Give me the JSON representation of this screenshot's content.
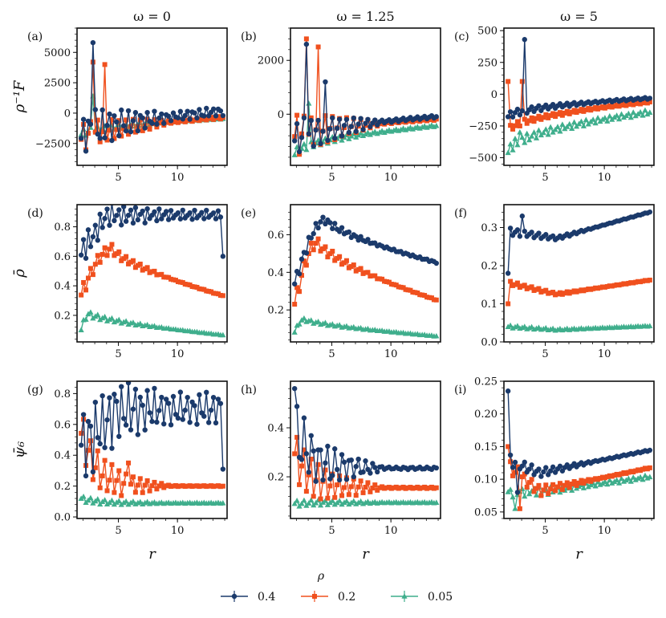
{
  "column_titles": [
    "ω = 0",
    "ω = 1.25",
    "ω = 5"
  ],
  "row_ylabels": [
    "ρ⁻¹F",
    "ρ̄",
    "ψ̄₆"
  ],
  "xlabel": "r",
  "legend": {
    "title": "ρ",
    "entries": [
      {
        "label": "0.4",
        "color": "#1b3a6b",
        "marker": "circle"
      },
      {
        "label": "0.2",
        "color": "#f0501e",
        "marker": "square"
      },
      {
        "label": "0.05",
        "color": "#3fae8c",
        "marker": "triangle"
      }
    ]
  },
  "chart_data": [
    {
      "panel": "(a)",
      "type": "line",
      "xlim": [
        1.5,
        14.2
      ],
      "ylim": [
        -4300,
        7000
      ],
      "xticks": [
        5,
        10
      ],
      "yticks": [
        -2500,
        0,
        2500,
        5000
      ],
      "ytick_labels": [
        "−2500",
        "0",
        "2500",
        "5000"
      ],
      "series": [
        {
          "name": "0.4",
          "shape": "osc",
          "start": -2000,
          "end": 150,
          "amp_start": 1800,
          "amp_end": 350,
          "period": 0.55,
          "spike": [
            2.8,
            5800
          ]
        },
        {
          "name": "0.2",
          "shape": "osc",
          "start": -2200,
          "end": -350,
          "amp_start": 1400,
          "amp_end": 120,
          "period": 0.6,
          "spike": [
            2.8,
            4200
          ],
          "spike2": [
            3.8,
            4000
          ]
        },
        {
          "name": "0.05",
          "shape": "smooth",
          "start": -1800,
          "end": -450,
          "amp_start": 300,
          "amp_end": 60,
          "period": 0.6,
          "spike": [
            2.9,
            1400
          ]
        }
      ]
    },
    {
      "panel": "(b)",
      "type": "line",
      "xlim": [
        1.5,
        14.2
      ],
      "ylim": [
        -1900,
        3200
      ],
      "xticks": [
        5,
        10
      ],
      "yticks": [
        0,
        2000
      ],
      "ytick_labels": [
        "0",
        "2000"
      ],
      "series": [
        {
          "name": "0.4",
          "shape": "osc",
          "start": -1000,
          "end": -80,
          "amp_start": 700,
          "amp_end": 60,
          "period": 0.6,
          "spike": [
            4.5,
            1200
          ],
          "spike2": [
            2.8,
            2600
          ]
        },
        {
          "name": "0.2",
          "shape": "osc",
          "start": -900,
          "end": -180,
          "amp_start": 800,
          "amp_end": 40,
          "period": 0.6,
          "spike": [
            2.8,
            2800
          ],
          "spike2": [
            3.9,
            2500
          ]
        },
        {
          "name": "0.05",
          "shape": "smooth",
          "start": -1500,
          "end": -420,
          "amp_start": 150,
          "amp_end": 40,
          "period": 0.6,
          "spike": [
            3.0,
            400
          ]
        }
      ]
    },
    {
      "panel": "(c)",
      "type": "line",
      "xlim": [
        1.5,
        14.2
      ],
      "ylim": [
        -560,
        520
      ],
      "xticks": [
        5,
        10
      ],
      "yticks": [
        -500,
        -250,
        0,
        250,
        500
      ],
      "ytick_labels": [
        "−500",
        "−250",
        "0",
        "250",
        "500"
      ],
      "series": [
        {
          "name": "0.4",
          "shape": "smooth",
          "start": -180,
          "end": -30,
          "amp_start": 30,
          "amp_end": 8,
          "period": 0.6,
          "spike": [
            3.2,
            430
          ]
        },
        {
          "name": "0.2",
          "shape": "smooth",
          "start": -300,
          "end": -60,
          "amp_start": 25,
          "amp_end": 8,
          "period": 0.6,
          "spike": [
            3.1,
            100
          ],
          "spike2": [
            1.9,
            100
          ]
        },
        {
          "name": "0.05",
          "shape": "smooth",
          "start": -460,
          "end": -140,
          "amp_start": 40,
          "amp_end": 20,
          "period": 0.5,
          "spike": [
            2.9,
            -300
          ]
        }
      ]
    },
    {
      "panel": "(d)",
      "type": "line",
      "xlim": [
        1.5,
        14.2
      ],
      "ylim": [
        0.02,
        0.95
      ],
      "xticks": [
        5,
        10
      ],
      "yticks": [
        0.2,
        0.4,
        0.6,
        0.8
      ],
      "ytick_labels": [
        "0.2",
        "0.4",
        "0.6",
        "0.8"
      ],
      "series": [
        {
          "name": "0.4",
          "shape": "osc",
          "start": 0.62,
          "end": 0.88,
          "amp_start": 0.1,
          "amp_end": 0.03,
          "period": 0.5,
          "rise": 4,
          "dip": [
            13.8,
            0.6
          ]
        },
        {
          "name": "0.2",
          "shape": "hump",
          "start": 0.34,
          "peak": 0.65,
          "peak_at": 4.5,
          "end": 0.33,
          "amp_start": 0.05,
          "amp_end": 0.003,
          "period": 0.6
        },
        {
          "name": "0.05",
          "shape": "hump",
          "start": 0.1,
          "peak": 0.21,
          "peak_at": 2.5,
          "end": 0.065,
          "amp_start": 0.02,
          "amp_end": 0.002,
          "period": 0.6
        }
      ]
    },
    {
      "panel": "(e)",
      "type": "line",
      "xlim": [
        1.5,
        14.2
      ],
      "ylim": [
        0.03,
        0.76
      ],
      "xticks": [
        5,
        10
      ],
      "yticks": [
        0.2,
        0.4,
        0.6
      ],
      "ytick_labels": [
        "0.2",
        "0.4",
        "0.6"
      ],
      "series": [
        {
          "name": "0.4",
          "shape": "hump",
          "start": 0.34,
          "peak": 0.68,
          "peak_at": 4.5,
          "end": 0.45,
          "amp_start": 0.03,
          "amp_end": 0.005,
          "period": 0.55
        },
        {
          "name": "0.2",
          "shape": "hump",
          "start": 0.23,
          "peak": 0.56,
          "peak_at": 3.8,
          "end": 0.25,
          "amp_start": 0.04,
          "amp_end": 0.003,
          "period": 0.6
        },
        {
          "name": "0.05",
          "shape": "hump",
          "start": 0.08,
          "peak": 0.15,
          "peak_at": 2.6,
          "end": 0.06,
          "amp_start": 0.01,
          "amp_end": 0.002,
          "period": 0.6
        }
      ]
    },
    {
      "panel": "(f)",
      "type": "line",
      "xlim": [
        1.5,
        14.2
      ],
      "ylim": [
        0.0,
        0.36
      ],
      "xticks": [
        5,
        10
      ],
      "yticks": [
        0.0,
        0.1,
        0.2,
        0.3
      ],
      "ytick_labels": [
        "0.0",
        "0.1",
        "0.2",
        "0.3"
      ],
      "series": [
        {
          "name": "0.4",
          "shape": "valley",
          "start": 0.29,
          "min": 0.272,
          "min_at": 6,
          "end": 0.342,
          "amp_start": 0.01,
          "amp_end": 0.001,
          "period": 0.6,
          "spike": [
            3.0,
            0.33
          ],
          "dip": [
            1.9,
            0.18
          ]
        },
        {
          "name": "0.2",
          "shape": "valley",
          "start": 0.155,
          "min": 0.125,
          "min_at": 6,
          "end": 0.163,
          "amp_start": 0.006,
          "amp_end": 0.001,
          "period": 0.6,
          "dip": [
            1.9,
            0.1
          ]
        },
        {
          "name": "0.05",
          "shape": "valley",
          "start": 0.04,
          "min": 0.032,
          "min_at": 6,
          "end": 0.042,
          "amp_start": 0.004,
          "amp_end": 0.001,
          "period": 0.6
        }
      ]
    },
    {
      "panel": "(g)",
      "type": "line",
      "xlim": [
        1.5,
        14.2
      ],
      "ylim": [
        -0.01,
        0.88
      ],
      "xticks": [
        5,
        10
      ],
      "yticks": [
        0.0,
        0.2,
        0.4,
        0.6,
        0.8
      ],
      "ytick_labels": [
        "0.0",
        "0.2",
        "0.4",
        "0.6",
        "0.8"
      ],
      "series": [
        {
          "name": "0.4",
          "shape": "osc",
          "start": 0.45,
          "end": 0.7,
          "amp_start": 0.25,
          "amp_end": 0.1,
          "period": 0.55,
          "rise": 5,
          "dip": [
            13.8,
            0.31
          ]
        },
        {
          "name": "0.2",
          "shape": "decay",
          "start": 0.56,
          "end": 0.2,
          "amp_start": 0.15,
          "amp_end": 0.003,
          "period": 0.6,
          "spike": [
            5.9,
            0.35
          ]
        },
        {
          "name": "0.05",
          "shape": "decay",
          "start": 0.12,
          "end": 0.09,
          "amp_start": 0.02,
          "amp_end": 0.003,
          "period": 0.6
        }
      ]
    },
    {
      "panel": "(h)",
      "type": "line",
      "xlim": [
        1.5,
        14.2
      ],
      "ylim": [
        0.03,
        0.59
      ],
      "xticks": [
        5,
        10
      ],
      "yticks": [
        0.2,
        0.4
      ],
      "ytick_labels": [
        "0.2",
        "0.4"
      ],
      "series": [
        {
          "name": "0.4",
          "shape": "decay",
          "start": 0.4,
          "end": 0.235,
          "amp_start": 0.12,
          "amp_end": 0.005,
          "period": 0.65,
          "spike": [
            1.9,
            0.56
          ]
        },
        {
          "name": "0.2",
          "shape": "decay",
          "start": 0.3,
          "end": 0.155,
          "amp_start": 0.1,
          "amp_end": 0.003,
          "period": 0.6
        },
        {
          "name": "0.05",
          "shape": "decay",
          "start": 0.09,
          "end": 0.095,
          "amp_start": 0.015,
          "amp_end": 0.002,
          "period": 0.6
        }
      ]
    },
    {
      "panel": "(i)",
      "type": "line",
      "xlim": [
        1.5,
        14.2
      ],
      "ylim": [
        0.04,
        0.25
      ],
      "xticks": [
        5,
        10
      ],
      "yticks": [
        0.05,
        0.1,
        0.15,
        0.2,
        0.25
      ],
      "ytick_labels": [
        "0.05",
        "0.10",
        "0.15",
        "0.20",
        "0.25"
      ],
      "series": [
        {
          "name": "0.4",
          "shape": "valley",
          "start": 0.13,
          "min": 0.11,
          "min_at": 4.5,
          "end": 0.145,
          "amp_start": 0.01,
          "amp_end": 0.001,
          "period": 0.6,
          "spike": [
            1.9,
            0.235
          ],
          "dip": [
            2.6,
            0.08
          ]
        },
        {
          "name": "0.2",
          "shape": "valley",
          "start": 0.12,
          "min": 0.082,
          "min_at": 4.5,
          "end": 0.118,
          "amp_start": 0.012,
          "amp_end": 0.001,
          "period": 0.6,
          "spike": [
            1.9,
            0.15
          ],
          "dip": [
            2.8,
            0.055
          ]
        },
        {
          "name": "0.05",
          "shape": "valley",
          "start": 0.08,
          "min": 0.082,
          "min_at": 5,
          "end": 0.104,
          "amp_start": 0.008,
          "amp_end": 0.003,
          "period": 0.5,
          "dip": [
            2.4,
            0.055
          ]
        }
      ]
    }
  ]
}
